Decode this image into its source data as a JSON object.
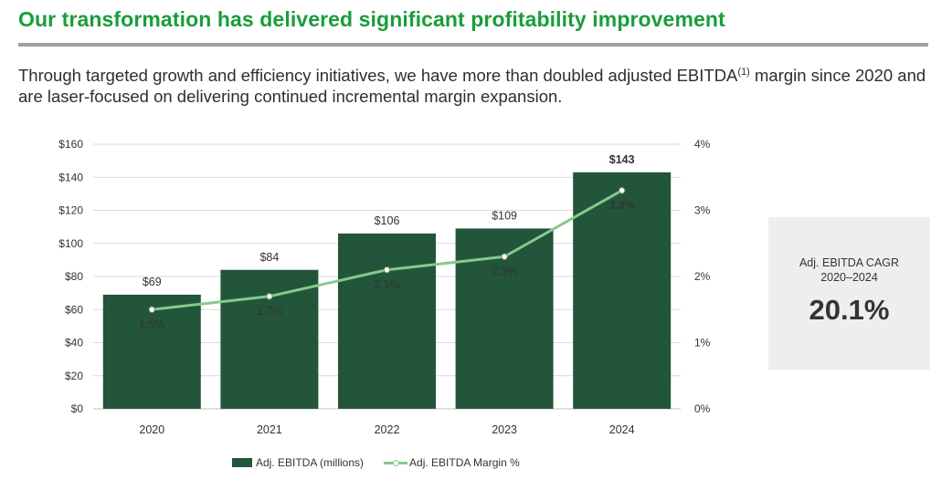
{
  "header": {
    "title": "Our transformation has delivered significant profitability improvement",
    "subtitle_part1": "Through targeted growth and efficiency initiatives, we have more than doubled adjusted EBITDA",
    "subtitle_sup": "(1)",
    "subtitle_part2": " margin since 2020 and are laser-focused on delivering continued incremental margin expansion."
  },
  "chart_data": {
    "type": "bar",
    "categories": [
      "2020",
      "2021",
      "2022",
      "2023",
      "2024"
    ],
    "series": [
      {
        "name": "Adj. EBITDA (millions)",
        "type": "bar",
        "axis": "left",
        "values": [
          69,
          84,
          106,
          109,
          143
        ],
        "labels": [
          "$69",
          "$84",
          "$106",
          "$109",
          "$143"
        ],
        "color": "#22553a"
      },
      {
        "name": "Adj. EBITDA Margin %",
        "type": "line",
        "axis": "right",
        "values": [
          1.5,
          1.7,
          2.1,
          2.3,
          3.3
        ],
        "labels": [
          "1.5%",
          "1.7%",
          "2.1%",
          "2.3%",
          "3.3%"
        ],
        "color": "#87c98c"
      }
    ],
    "y_left": {
      "ylim": [
        0,
        160
      ],
      "ticks": [
        0,
        20,
        40,
        60,
        80,
        100,
        120,
        140,
        160
      ],
      "tick_labels": [
        "$0",
        "$20",
        "$40",
        "$60",
        "$80",
        "$100",
        "$120",
        "$140",
        "$160"
      ]
    },
    "y_right": {
      "ylim": [
        0,
        4
      ],
      "ticks": [
        0,
        1,
        2,
        3,
        4
      ],
      "tick_labels": [
        "0%",
        "1%",
        "2%",
        "3%",
        "4%"
      ]
    },
    "highlight_color": "#1a9d3a",
    "grid": true,
    "legend_position": "bottom"
  },
  "callout": {
    "label_line1": "Adj. EBITDA CAGR",
    "label_line2": "2020–2024",
    "value": "20.1%"
  }
}
